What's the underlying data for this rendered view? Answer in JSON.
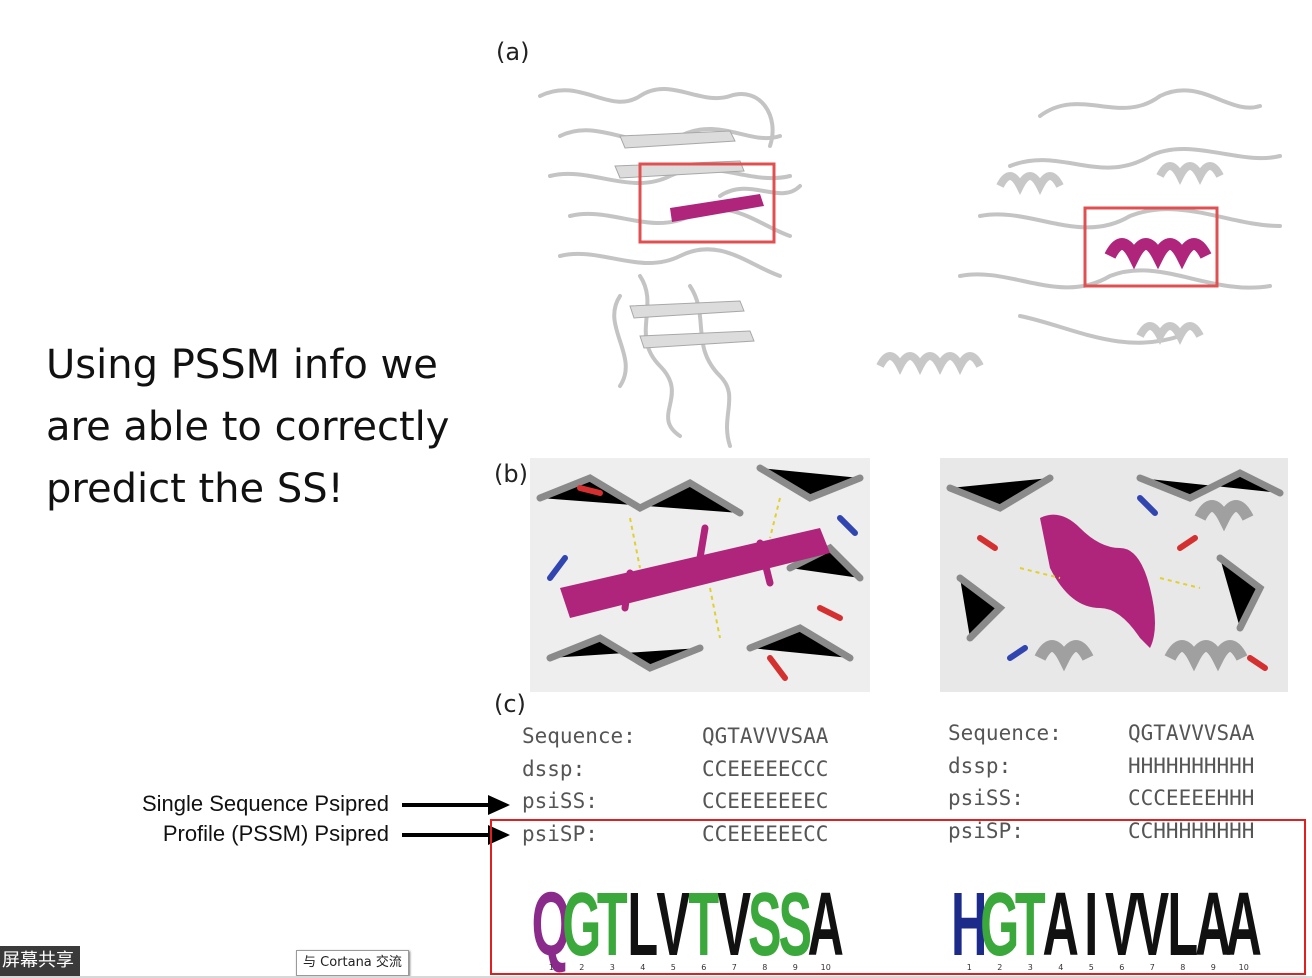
{
  "slide": {
    "lines": [
      "Using PSSM info we",
      "are able to correctly",
      "predict the SS!"
    ]
  },
  "figure": {
    "panel_labels": {
      "a": "(a)",
      "b": "(b)",
      "c": "(c)"
    },
    "colors": {
      "highlight": "#b0257c",
      "box": "#e05050",
      "strand": "#c0c0c0"
    }
  },
  "sequence_tables": [
    {
      "rows": [
        {
          "key": "Sequence:",
          "value": "QGTAVVVSAA"
        },
        {
          "key": "dssp:",
          "value": "CCEEEEECCC"
        },
        {
          "key": "psiSS:",
          "value": "CCEEEEEEEC"
        },
        {
          "key": "psiSP:",
          "value": "CCEEEEEECC"
        }
      ]
    },
    {
      "rows": [
        {
          "key": "Sequence:",
          "value": "QGTAVVVSAA"
        },
        {
          "key": "dssp:",
          "value": "HHHHHHHHHH"
        },
        {
          "key": "psiSS:",
          "value": "CCCEEEEHHH"
        },
        {
          "key": "psiSP:",
          "value": "CCHHHHHHHH"
        }
      ]
    }
  ],
  "annotations": {
    "single": "Single Sequence Psipred",
    "profile": "Profile (PSSM) Psipred"
  },
  "logos": [
    {
      "letters": [
        {
          "ch": "Q",
          "color": "#8a2a8a"
        },
        {
          "ch": "G",
          "color": "#3aa83a"
        },
        {
          "ch": "T",
          "color": "#3aa83a"
        },
        {
          "ch": "L",
          "color": "#111111"
        },
        {
          "ch": "V",
          "color": "#111111"
        },
        {
          "ch": "T",
          "color": "#3aa83a"
        },
        {
          "ch": "V",
          "color": "#111111"
        },
        {
          "ch": "S",
          "color": "#3aa83a"
        },
        {
          "ch": "S",
          "color": "#3aa83a"
        },
        {
          "ch": "A",
          "color": "#111111"
        }
      ]
    },
    {
      "letters": [
        {
          "ch": "H",
          "color": "#1c2a8a"
        },
        {
          "ch": "G",
          "color": "#3aa83a"
        },
        {
          "ch": "T",
          "color": "#3aa83a"
        },
        {
          "ch": "A",
          "color": "#111111"
        },
        {
          "ch": "I",
          "color": "#111111"
        },
        {
          "ch": "V",
          "color": "#111111"
        },
        {
          "ch": "V",
          "color": "#111111"
        },
        {
          "ch": "L",
          "color": "#111111"
        },
        {
          "ch": "A",
          "color": "#111111"
        },
        {
          "ch": "A",
          "color": "#111111"
        }
      ]
    }
  ],
  "logo_positions": [
    "1",
    "2",
    "3",
    "4",
    "5",
    "6",
    "7",
    "8",
    "9",
    "10"
  ],
  "taskbar": {
    "label": "屏幕共享",
    "cortana": "与 Cortana 交流"
  }
}
